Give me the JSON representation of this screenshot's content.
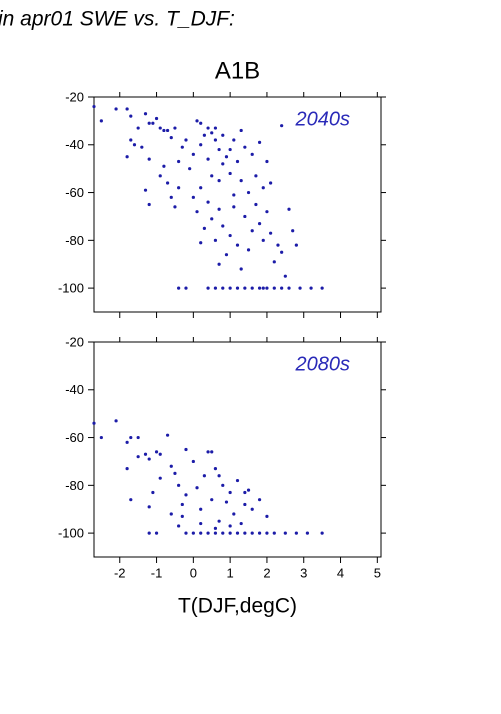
{
  "header": {
    "title": "in apr01 SWE vs. T_DJF:"
  },
  "chart_data": [
    {
      "type": "scatter",
      "title": "A1B",
      "annotation": "2040s",
      "annotation_color": "#2a2ab8",
      "xlim": [
        -2.7,
        5.1
      ],
      "ylim": [
        -110,
        -20
      ],
      "xticks": [
        -2,
        -1,
        0,
        1,
        2,
        3,
        4,
        5
      ],
      "yticks": [
        -20,
        -40,
        -60,
        -80,
        -100
      ],
      "xticklabels": false,
      "series": [
        {
          "color": "#1c1ca8",
          "x": [
            -2.7,
            -2.5,
            -2.1,
            -1.8,
            -1.7,
            -1.5,
            -1.3,
            -1.2,
            -1.1,
            -1.0,
            -0.9,
            -0.8,
            -0.7,
            -0.6,
            -0.5,
            -1.7,
            -1.6,
            -1.8,
            -1.4,
            -1.2,
            -1.3,
            -1.2,
            -0.9,
            -0.8,
            -0.7,
            -0.6,
            -0.5,
            -0.4,
            -0.4,
            -0.3,
            -0.2,
            -0.1,
            0,
            0.1,
            0.2,
            0.2,
            0.3,
            0.4,
            0.4,
            0.5,
            0.5,
            0.6,
            0.6,
            0.7,
            0.7,
            0.8,
            0.8,
            0.9,
            1.0,
            1.0,
            1.1,
            1.2,
            1.3,
            1.3,
            1.4,
            1.5,
            1.6,
            1.7,
            1.8,
            1.9,
            2.0,
            2.1,
            2.4,
            0.0,
            0.1,
            0.2,
            0.3,
            0.4,
            0.5,
            0.6,
            0.7,
            0.8,
            0.9,
            1.0,
            1.1,
            1.2,
            1.3,
            1.4,
            1.5,
            1.6,
            1.7,
            1.8,
            1.9,
            2.0,
            2.1,
            2.2,
            2.3,
            2.4,
            2.5,
            2.6,
            2.7,
            2.8,
            -0.4,
            -0.2,
            0.4,
            0.6,
            0.8,
            1.0,
            1.2,
            1.4,
            1.6,
            1.8,
            1.9,
            2.0,
            2.2,
            2.4,
            2.6,
            2.9,
            3.2,
            3.5,
            0.2,
            0.7,
            1.1
          ],
          "values": [
            -24,
            -30,
            -25,
            -25,
            -28,
            -33,
            -27,
            -31,
            -31,
            -29,
            -33,
            -34,
            -34,
            -37,
            -33,
            -38,
            -40,
            -45,
            -41,
            -46,
            -59,
            -65,
            -53,
            -49,
            -56,
            -62,
            -66,
            -47,
            -58,
            -41,
            -38,
            -50,
            -44,
            -30,
            -31,
            -40,
            -36,
            -33,
            -46,
            -35,
            -53,
            -33,
            -38,
            -42,
            -55,
            -36,
            -48,
            -45,
            -42,
            -52,
            -38,
            -47,
            -34,
            -55,
            -41,
            -60,
            -44,
            -53,
            -39,
            -58,
            -47,
            -56,
            -32,
            -62,
            -68,
            -58,
            -75,
            -64,
            -71,
            -80,
            -67,
            -74,
            -86,
            -78,
            -66,
            -82,
            -92,
            -70,
            -84,
            -76,
            -65,
            -73,
            -80,
            -68,
            -77,
            -89,
            -82,
            -85,
            -95,
            -67,
            -76,
            -82,
            -100,
            -100,
            -100,
            -100,
            -100,
            -100,
            -100,
            -100,
            -100,
            -100,
            -100,
            -100,
            -100,
            -100,
            -100,
            -100,
            -100,
            -100,
            -81,
            -90,
            -61
          ]
        }
      ]
    },
    {
      "type": "scatter",
      "annotation": "2080s",
      "annotation_color": "#2a2ab8",
      "xlabel": "T(DJF,degC)",
      "xlim": [
        -2.7,
        5.1
      ],
      "ylim": [
        -110,
        -20
      ],
      "xticks": [
        -2,
        -1,
        0,
        1,
        2,
        3,
        4,
        5
      ],
      "yticks": [
        -20,
        -40,
        -60,
        -80,
        -100
      ],
      "xticklabels": true,
      "series": [
        {
          "color": "#1c1ca8",
          "x": [
            -2.7,
            -2.5,
            -2.1,
            -1.8,
            -1.7,
            -1.5,
            -1.3,
            -1.2,
            -1.0,
            -0.9,
            -0.7,
            -0.6,
            -0.5,
            -0.4,
            -0.3,
            -1.8,
            -1.7,
            -1.2,
            -1.1,
            -1.0,
            -0.9,
            -0.6,
            -0.4,
            -0.3,
            -0.2,
            0.0,
            0.1,
            0.2,
            0.3,
            0.4,
            0.5,
            0.5,
            0.6,
            0.7,
            0.8,
            0.9,
            1.0,
            1.1,
            1.2,
            1.3,
            1.4,
            1.5,
            1.6,
            1.8,
            2.0,
            0.2,
            0.6,
            1.0,
            -1.2,
            -0.2,
            0,
            0.2,
            0.4,
            0.6,
            0.8,
            1.0,
            1.2,
            1.4,
            1.6,
            1.8,
            2.0,
            2.2,
            2.5,
            2.8,
            3.1,
            3.5,
            0.7,
            1.4,
            -0.2,
            -1.5
          ],
          "values": [
            -54,
            -60,
            -53,
            -62,
            -60,
            -60,
            -67,
            -69,
            -66,
            -67,
            -59,
            -72,
            -75,
            -80,
            -88,
            -73,
            -86,
            -89,
            -83,
            -100,
            -77,
            -92,
            -97,
            -93,
            -84,
            -70,
            -81,
            -90,
            -76,
            -66,
            -66,
            -86,
            -73,
            -95,
            -80,
            -87,
            -83,
            -92,
            -78,
            -96,
            -88,
            -82,
            -90,
            -86,
            -93,
            -96,
            -98,
            -97,
            -100,
            -100,
            -100,
            -100,
            -100,
            -100,
            -100,
            -100,
            -100,
            -100,
            -100,
            -100,
            -100,
            -100,
            -100,
            -100,
            -100,
            -100,
            -76,
            -83,
            -65,
            -68
          ]
        }
      ]
    }
  ]
}
